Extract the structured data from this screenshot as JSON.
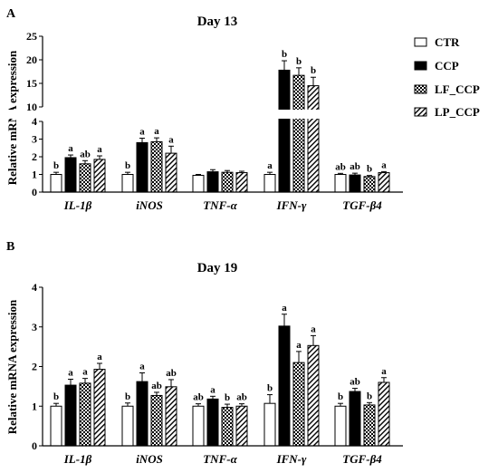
{
  "legend": [
    "CTR",
    "CCP",
    "LF_CCP",
    "LP_CCP"
  ],
  "colors": {
    "axis": "#000000",
    "ctr": "#ffffff",
    "ccp": "#000000"
  },
  "chart_data": [
    {
      "panel": "A",
      "type": "bar",
      "title": "Day 13",
      "ylabel": "Relative mRNA expression",
      "y_axis_break": {
        "lower": [
          0,
          4
        ],
        "upper": [
          10,
          25
        ]
      },
      "yticks_lower": [
        0,
        1,
        2,
        3,
        4
      ],
      "yticks_upper": [
        10,
        15,
        20,
        25
      ],
      "categories": [
        "IL-1β",
        "iNOS",
        "TNF-α",
        "IFN-γ",
        "TGF-β4"
      ],
      "series": [
        {
          "name": "CTR",
          "values": [
            1.0,
            1.0,
            0.95,
            1.0,
            1.0
          ],
          "errors": [
            0.12,
            0.12,
            0.05,
            0.12,
            0.06
          ]
        },
        {
          "name": "CCP",
          "values": [
            1.95,
            2.8,
            1.15,
            17.8,
            0.97
          ],
          "errors": [
            0.15,
            0.25,
            0.12,
            2.0,
            0.1
          ]
        },
        {
          "name": "LF_CCP",
          "values": [
            1.6,
            2.85,
            1.12,
            16.7,
            0.88
          ],
          "errors": [
            0.18,
            0.22,
            0.1,
            1.6,
            0.06
          ]
        },
        {
          "name": "LP_CCP",
          "values": [
            1.85,
            2.2,
            1.1,
            14.5,
            1.1
          ],
          "errors": [
            0.2,
            0.4,
            0.08,
            1.8,
            0.06
          ]
        }
      ],
      "letters": [
        [
          "b",
          "b",
          "",
          "a",
          "ab"
        ],
        [
          "a",
          "a",
          "",
          "b",
          "ab"
        ],
        [
          "ab",
          "a",
          "",
          "b",
          "b"
        ],
        [
          "a",
          "a",
          "",
          "b",
          "a"
        ]
      ]
    },
    {
      "panel": "B",
      "type": "bar",
      "title": "Day 19",
      "ylabel": "Relative mRNA expression",
      "ylim": [
        0,
        4
      ],
      "yticks": [
        0,
        1,
        2,
        3,
        4
      ],
      "categories": [
        "IL-1β",
        "iNOS",
        "TNF-α",
        "IFN-γ",
        "TGF-β4"
      ],
      "series": [
        {
          "name": "CTR",
          "values": [
            1.0,
            1.0,
            1.0,
            1.07,
            1.0
          ],
          "errors": [
            0.07,
            0.08,
            0.06,
            0.22,
            0.07
          ]
        },
        {
          "name": "CCP",
          "values": [
            1.53,
            1.62,
            1.18,
            3.02,
            1.37
          ],
          "errors": [
            0.15,
            0.22,
            0.07,
            0.3,
            0.08
          ]
        },
        {
          "name": "LF_CCP",
          "values": [
            1.58,
            1.27,
            0.97,
            2.1,
            1.03
          ],
          "errors": [
            0.12,
            0.08,
            0.08,
            0.28,
            0.06
          ]
        },
        {
          "name": "LP_CCP",
          "values": [
            1.93,
            1.49,
            1.0,
            2.53,
            1.6
          ],
          "errors": [
            0.15,
            0.18,
            0.06,
            0.25,
            0.12
          ]
        }
      ],
      "letters": [
        [
          "b",
          "b",
          "ab",
          "b",
          "b"
        ],
        [
          "a",
          "a",
          "a",
          "a",
          "ab"
        ],
        [
          "a",
          "ab",
          "b",
          "a",
          "b"
        ],
        [
          "a",
          "ab",
          "ab",
          "a",
          "a"
        ]
      ]
    }
  ]
}
